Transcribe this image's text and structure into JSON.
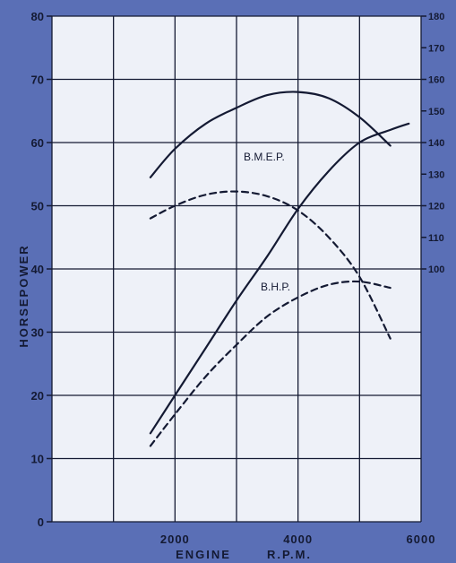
{
  "chart_data": {
    "type": "line",
    "title": "",
    "xlabel_left": "ENGINE",
    "xlabel_right": "R.P.M.",
    "ylabel": "HORSEPOWER",
    "xlim": [
      0,
      6000
    ],
    "ylim": [
      0,
      80
    ],
    "y2lim": [
      20,
      180
    ],
    "grid": true,
    "x_ticks": [
      "2000",
      "4000",
      "6000"
    ],
    "y_ticks": [
      "0",
      "10",
      "20",
      "30",
      "40",
      "50",
      "60",
      "70",
      "80"
    ],
    "y2_ticks": [
      "100",
      "110",
      "120",
      "130",
      "140",
      "150",
      "160",
      "170",
      "180"
    ],
    "series": [
      {
        "name": "B.H.P.",
        "axis": "left",
        "style": "solid",
        "x": [
          1600,
          2000,
          2500,
          3000,
          3500,
          4000,
          4500,
          5000,
          5500,
          5800
        ],
        "y": [
          14,
          20,
          27.5,
          35,
          42,
          49.5,
          55.5,
          60,
          62,
          63
        ]
      },
      {
        "name": "B.M.E.P.",
        "axis": "right",
        "style": "solid",
        "x": [
          1600,
          2000,
          2500,
          3000,
          3500,
          4000,
          4500,
          5000,
          5500
        ],
        "y": [
          129,
          138,
          146,
          151,
          155,
          156,
          154,
          148,
          139
        ]
      },
      {
        "name": "",
        "axis": "left",
        "style": "dashed",
        "x": [
          1600,
          2000,
          2500,
          3000,
          3500,
          4000,
          4500,
          5000,
          5500
        ],
        "y": [
          12,
          17,
          23,
          28,
          32.5,
          35.5,
          37.5,
          38,
          37
        ]
      },
      {
        "name": "",
        "axis": "right",
        "style": "dashed",
        "x": [
          1600,
          2000,
          2500,
          3000,
          3500,
          4000,
          4500,
          5000,
          5500
        ],
        "y": [
          116,
          120,
          123.5,
          124.5,
          123,
          118.5,
          110,
          97.5,
          78
        ]
      }
    ],
    "series_labels": [
      "B.M.E.P.",
      "B.H.P."
    ],
    "colors": {
      "background": "#5a6fb6",
      "plot": "#eef1f8",
      "grid": "#141a33",
      "curve": "#141a33"
    }
  }
}
